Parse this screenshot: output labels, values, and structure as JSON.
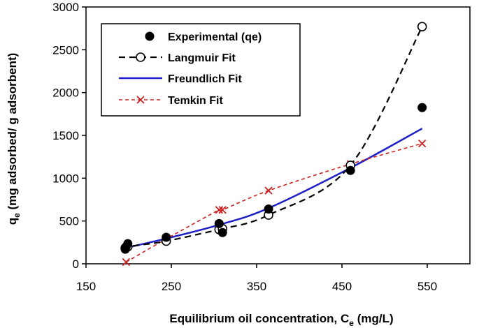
{
  "chart_data": {
    "type": "scatter",
    "title": "",
    "xlabel": {
      "main": "Equilibrium oil concentration, C",
      "sub": "e",
      "unit": " (mg/L)"
    },
    "ylabel": {
      "main": "q",
      "sub": "e",
      "rest": "  (mg adsorbed/ g adsorbent)"
    },
    "xlim": [
      150,
      600
    ],
    "ylim": [
      0,
      3000
    ],
    "xticks": [
      150,
      250,
      350,
      450,
      550
    ],
    "yticks": [
      0,
      500,
      1000,
      1500,
      2000,
      2500,
      3000
    ],
    "grid": false,
    "legend_position": "top-left",
    "colors": {
      "experimental": "#000000",
      "langmuir": "#000000",
      "freundlich": "#1f1fc8",
      "temkin": "#cc2020",
      "axis": "#000000"
    },
    "series": [
      {
        "name": "Experimental (qe)",
        "style": "filled-marker",
        "points": [
          [
            196,
            170
          ],
          [
            197,
            200
          ],
          [
            199,
            235
          ],
          [
            244,
            310
          ],
          [
            306,
            470
          ],
          [
            310,
            365
          ],
          [
            364,
            640
          ],
          [
            460,
            1090
          ],
          [
            544,
            1825
          ]
        ]
      },
      {
        "name": "Langmuir Fit",
        "style": "dashed-open-marker",
        "points": [
          [
            196,
            185
          ],
          [
            199,
            200
          ],
          [
            244,
            265
          ],
          [
            306,
            400
          ],
          [
            310,
            410
          ],
          [
            364,
            570
          ],
          [
            460,
            1150
          ],
          [
            544,
            2770
          ]
        ]
      },
      {
        "name": "Freundlich Fit",
        "style": "solid-line",
        "points": [
          [
            196,
            185
          ],
          [
            244,
            295
          ],
          [
            306,
            455
          ],
          [
            364,
            650
          ],
          [
            460,
            1120
          ],
          [
            544,
            1580
          ]
        ]
      },
      {
        "name": "Temkin Fit",
        "style": "dashed-x-marker",
        "points": [
          [
            197,
            20
          ],
          [
            244,
            290
          ],
          [
            306,
            630
          ],
          [
            310,
            630
          ],
          [
            364,
            855
          ],
          [
            460,
            1165
          ],
          [
            544,
            1405
          ]
        ]
      }
    ]
  }
}
